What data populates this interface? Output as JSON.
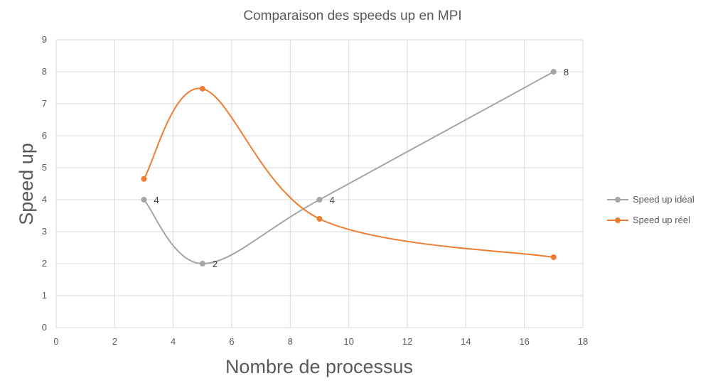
{
  "chart_data": {
    "type": "line",
    "title": "Comparaison des speeds up en MPI",
    "xlabel": "Nombre de processus",
    "ylabel": "Speed up",
    "xlim": [
      0,
      18
    ],
    "ylim": [
      0,
      9
    ],
    "x_ticks": [
      0,
      2,
      4,
      6,
      8,
      10,
      12,
      14,
      16,
      18
    ],
    "y_ticks": [
      0,
      1,
      2,
      3,
      4,
      5,
      6,
      7,
      8,
      9
    ],
    "grid": true,
    "smooth": true,
    "legend_position": "right",
    "series": [
      {
        "name": "Speed up idéal",
        "color": "#a5a5a5",
        "points": [
          {
            "x": 3,
            "y": 4,
            "label": "4"
          },
          {
            "x": 5,
            "y": 2,
            "label": "2"
          },
          {
            "x": 9,
            "y": 4,
            "label": "4"
          },
          {
            "x": 17,
            "y": 8,
            "label": "8"
          }
        ]
      },
      {
        "name": "Speed up réel",
        "color": "#ed7d31",
        "points": [
          {
            "x": 3,
            "y": 4.65
          },
          {
            "x": 5,
            "y": 7.47
          },
          {
            "x": 9,
            "y": 3.4
          },
          {
            "x": 17,
            "y": 2.2
          }
        ]
      }
    ]
  }
}
